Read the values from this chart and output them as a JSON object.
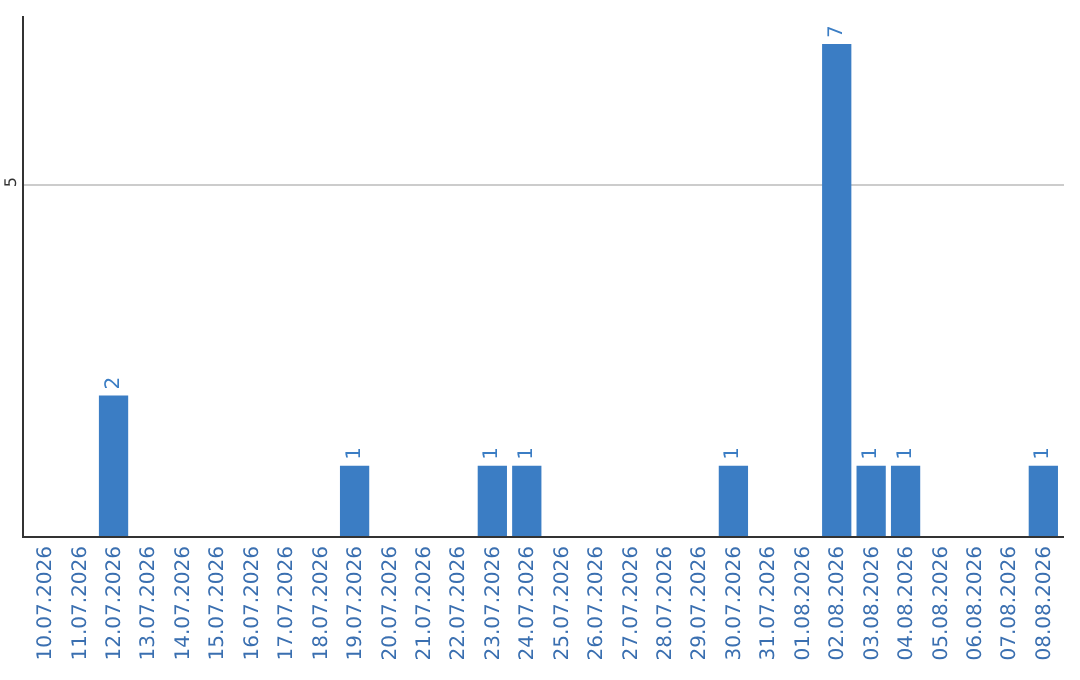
{
  "chart_data": {
    "type": "bar",
    "categories": [
      "10.07.2026",
      "11.07.2026",
      "12.07.2026",
      "13.07.2026",
      "14.07.2026",
      "15.07.2026",
      "16.07.2026",
      "17.07.2026",
      "18.07.2026",
      "19.07.2026",
      "20.07.2026",
      "21.07.2026",
      "22.07.2026",
      "23.07.2026",
      "24.07.2026",
      "25.07.2026",
      "26.07.2026",
      "27.07.2026",
      "28.07.2026",
      "29.07.2026",
      "30.07.2026",
      "31.07.2026",
      "01.08.2026",
      "02.08.2026",
      "03.08.2026",
      "04.08.2026",
      "05.08.2026",
      "06.08.2026",
      "07.08.2026",
      "08.08.2026"
    ],
    "values": [
      0,
      0,
      2,
      0,
      0,
      0,
      0,
      0,
      0,
      1,
      0,
      0,
      0,
      1,
      1,
      0,
      0,
      0,
      0,
      0,
      1,
      0,
      0,
      7,
      1,
      1,
      0,
      0,
      0,
      1
    ],
    "value_labels": [
      null,
      null,
      "2",
      null,
      null,
      null,
      null,
      null,
      null,
      "1",
      null,
      null,
      null,
      "1",
      "1",
      null,
      null,
      null,
      null,
      null,
      "1",
      null,
      null,
      "7",
      "1",
      "1",
      null,
      null,
      null,
      "1"
    ],
    "color": "#3b7dc4",
    "ylim": [
      0,
      7.4
    ],
    "yticks": [
      5
    ],
    "grid": "y",
    "legend": false
  }
}
